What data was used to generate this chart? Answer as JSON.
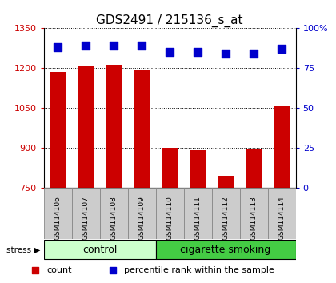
{
  "title": "GDS2491 / 215136_s_at",
  "samples": [
    "GSM114106",
    "GSM114107",
    "GSM114108",
    "GSM114109",
    "GSM114110",
    "GSM114111",
    "GSM114112",
    "GSM114113",
    "GSM114114"
  ],
  "counts": [
    1185,
    1210,
    1213,
    1195,
    900,
    893,
    797,
    897,
    1060
  ],
  "percentiles": [
    88,
    89,
    89,
    89,
    85,
    85,
    84,
    84,
    87
  ],
  "groups": [
    "control",
    "control",
    "control",
    "control",
    "cigarette smoking",
    "cigarette smoking",
    "cigarette smoking",
    "cigarette smoking",
    "cigarette smoking"
  ],
  "ylim_left": [
    750,
    1350
  ],
  "ylim_right": [
    0,
    100
  ],
  "yticks_left": [
    750,
    900,
    1050,
    1200,
    1350
  ],
  "yticks_right": [
    0,
    25,
    50,
    75,
    100
  ],
  "bar_color": "#cc0000",
  "dot_color": "#0000cc",
  "control_color_light": "#ccffcc",
  "control_color_dark": "#66dd66",
  "smoking_color": "#44cc44",
  "tick_label_color_left": "#cc0000",
  "tick_label_color_right": "#0000cc",
  "group_label_fontsize": 9,
  "title_fontsize": 11,
  "bar_width": 0.55,
  "dot_size": 45,
  "cell_bg": "#cccccc",
  "cell_border": "#888888"
}
